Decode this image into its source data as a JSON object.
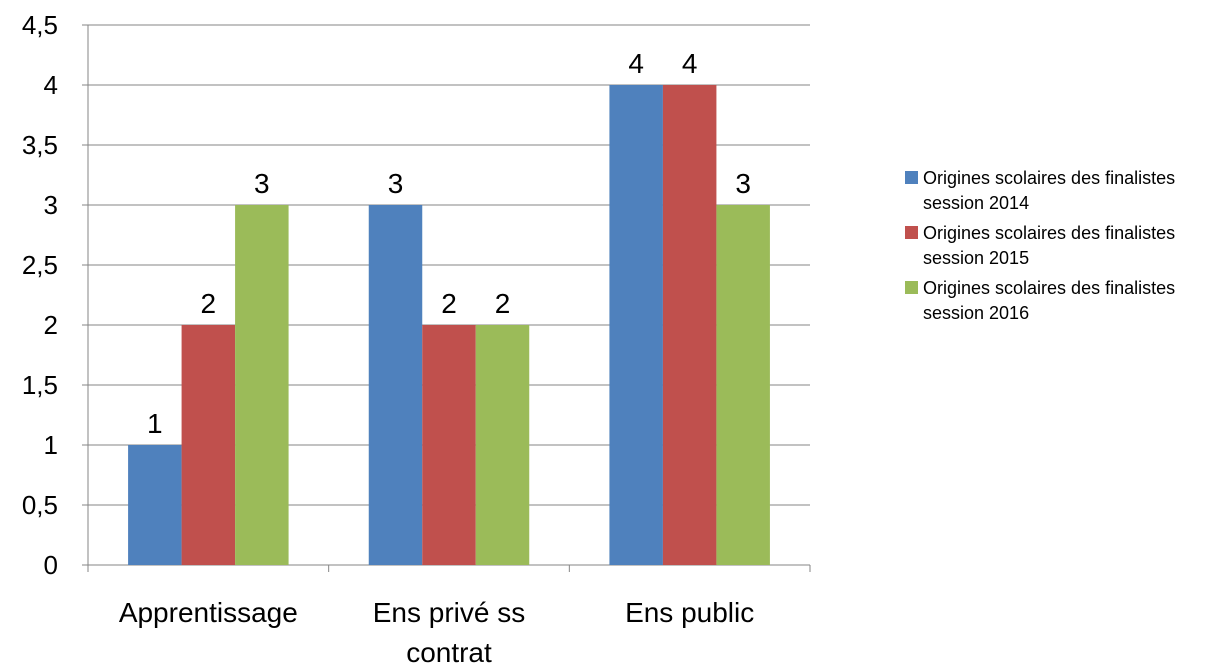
{
  "chart_data": {
    "type": "bar",
    "title": "",
    "xlabel": "",
    "ylabel": "",
    "categories": [
      "Apprentissage",
      "Ens privé ss contrat",
      "Ens public"
    ],
    "series": [
      {
        "name": "Origines scolaires des finalistes session 2014",
        "values": [
          1,
          3,
          4
        ],
        "color": "#4F81BD"
      },
      {
        "name": "Origines scolaires des finalistes session 2015",
        "values": [
          2,
          2,
          4
        ],
        "color": "#C0504D"
      },
      {
        "name": "Origines scolaires des finalistes session 2016",
        "values": [
          3,
          2,
          3
        ],
        "color": "#9BBB59"
      }
    ],
    "ylim": [
      0,
      4.5
    ],
    "y_ticks": [
      0,
      0.5,
      1,
      1.5,
      2,
      2.5,
      3,
      3.5,
      4,
      4.5
    ],
    "y_tick_labels": [
      "0",
      "0,5",
      "1",
      "1,5",
      "2",
      "2,5",
      "3",
      "3,5",
      "4",
      "4,5"
    ],
    "grid": true,
    "data_labels": true,
    "legend_position": "right"
  },
  "legend": {
    "items": [
      {
        "label": "Origines scolaires des finalistes session 2014",
        "color": "#4F81BD"
      },
      {
        "label": "Origines scolaires des finalistes session 2015",
        "color": "#C0504D"
      },
      {
        "label": "Origines scolaires des finalistes session 2016",
        "color": "#9BBB59"
      }
    ]
  }
}
